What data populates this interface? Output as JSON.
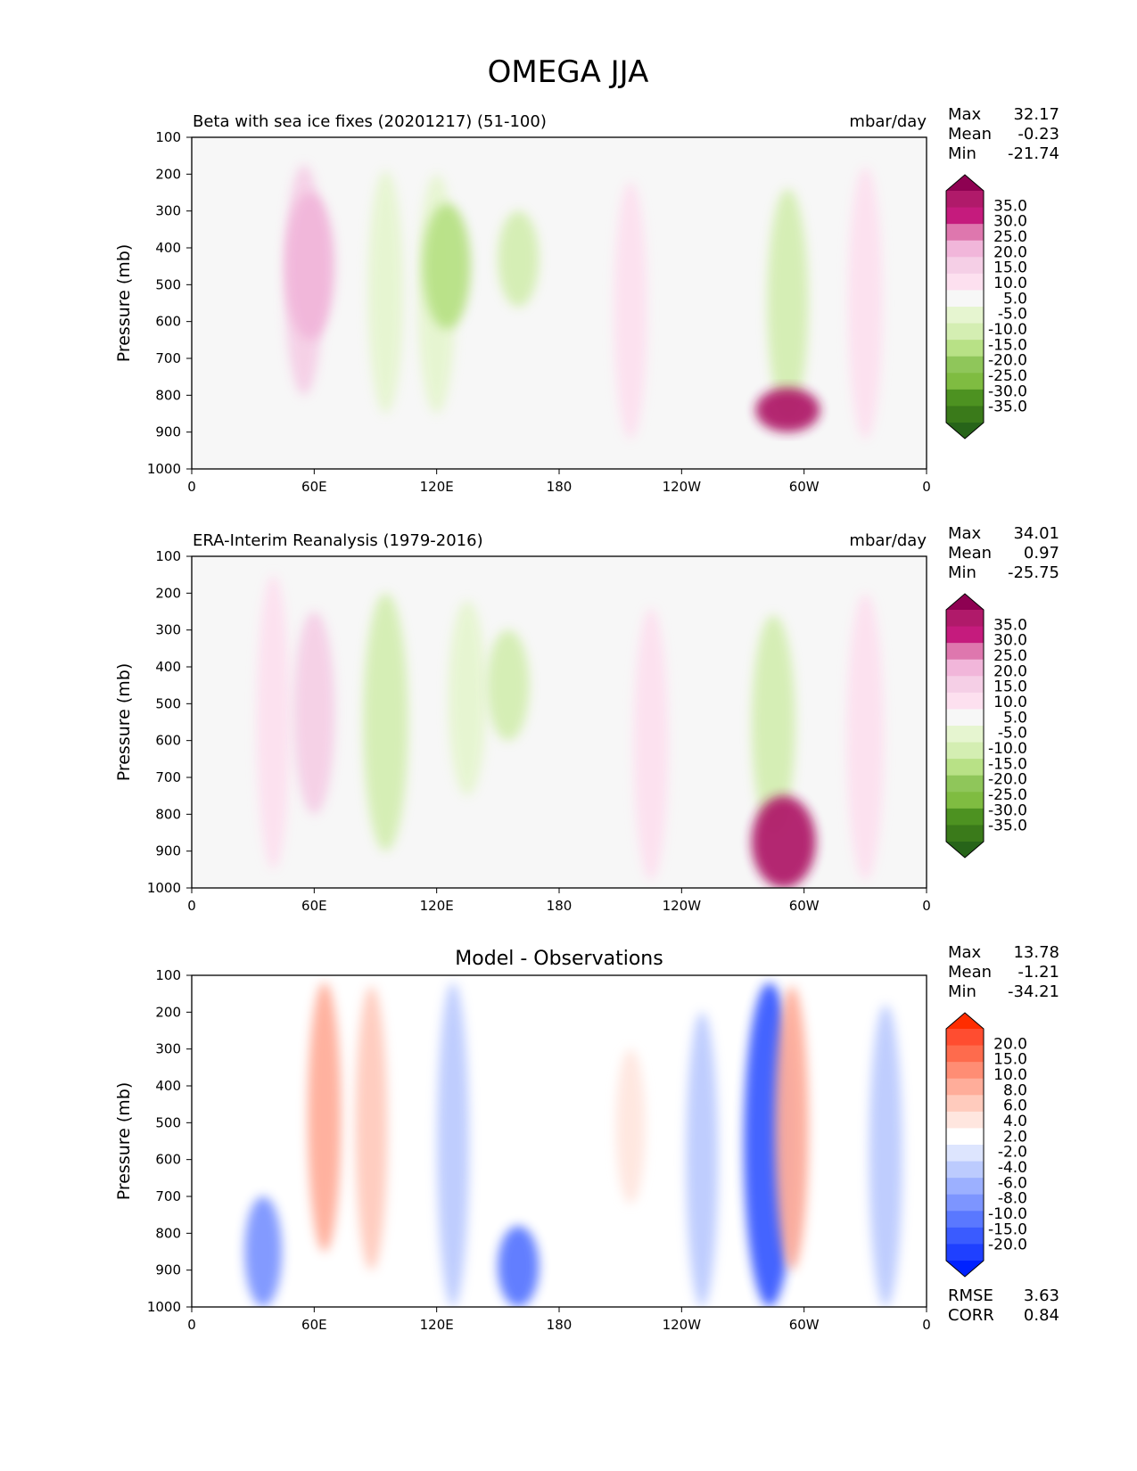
{
  "figure": {
    "title": "OMEGA JJA"
  },
  "chart_data": [
    {
      "type": "heatmap",
      "panel": "test",
      "title": "Beta with sea ice fixes (20201217) (51-100)",
      "units": "mbar/day",
      "ylabel": "Pressure (mb)",
      "xlabel": "",
      "x_ticks": [
        "0",
        "60E",
        "120E",
        "180",
        "120W",
        "60W",
        "0"
      ],
      "y_ticks": [
        "100",
        "200",
        "300",
        "400",
        "500",
        "600",
        "700",
        "800",
        "900",
        "1000"
      ],
      "xlim": [
        0,
        360
      ],
      "ylim": [
        100,
        1000
      ],
      "y_inverted": true,
      "stats": [
        {
          "label": "Max",
          "value": "32.17"
        },
        {
          "label": "Mean",
          "value": "-0.23"
        },
        {
          "label": "Min",
          "value": "-21.74"
        }
      ],
      "colorbar": {
        "labels": [
          "35.0",
          "30.0",
          "25.0",
          "20.0",
          "15.0",
          "10.0",
          "5.0",
          "-5.0",
          "-10.0",
          "-15.0",
          "-20.0",
          "-25.0",
          "-30.0",
          "-35.0"
        ],
        "colors": [
          "#8e0152",
          "#b01a6a",
          "#c51b7d",
          "#de77ae",
          "#f1b6da",
          "#f5cfe6",
          "#fde0ef",
          "#f7f7f7",
          "#e6f5d0",
          "#d4eeb2",
          "#b8e186",
          "#8fc65a",
          "#7fbc41",
          "#4d9221",
          "#3a7a1a",
          "#276419"
        ],
        "extend": "both"
      },
      "features": [
        {
          "lon": 55,
          "p_top": 175,
          "p_bot": 800,
          "value": 10
        },
        {
          "lon": 58,
          "p_top": 250,
          "p_bot": 650,
          "value": 18
        },
        {
          "lon": 120,
          "p_top": 200,
          "p_bot": 850,
          "value": -10
        },
        {
          "lon": 125,
          "p_top": 280,
          "p_bot": 620,
          "value": -17
        },
        {
          "lon": 95,
          "p_top": 190,
          "p_bot": 850,
          "value": -8
        },
        {
          "lon": 160,
          "p_top": 300,
          "p_bot": 560,
          "value": -12
        },
        {
          "lon": 215,
          "p_top": 220,
          "p_bot": 920,
          "value": 6
        },
        {
          "lon": 292,
          "p_top": 240,
          "p_bot": 860,
          "value": -12
        },
        {
          "lon": 292,
          "p_top": 780,
          "p_bot": 900,
          "value": 30
        },
        {
          "lon": 330,
          "p_top": 180,
          "p_bot": 920,
          "value": 7
        }
      ]
    },
    {
      "type": "heatmap",
      "panel": "reference",
      "title": "ERA-Interim Reanalysis (1979-2016)",
      "units": "mbar/day",
      "ylabel": "Pressure (mb)",
      "xlabel": "",
      "x_ticks": [
        "0",
        "60E",
        "120E",
        "180",
        "120W",
        "60W",
        "0"
      ],
      "y_ticks": [
        "100",
        "200",
        "300",
        "400",
        "500",
        "600",
        "700",
        "800",
        "900",
        "1000"
      ],
      "xlim": [
        0,
        360
      ],
      "ylim": [
        100,
        1000
      ],
      "y_inverted": true,
      "stats": [
        {
          "label": "Max",
          "value": "34.01"
        },
        {
          "label": "Mean",
          "value": "0.97"
        },
        {
          "label": "Min",
          "value": "-25.75"
        }
      ],
      "colorbar": {
        "labels": [
          "35.0",
          "30.0",
          "25.0",
          "20.0",
          "15.0",
          "10.0",
          "5.0",
          "-5.0",
          "-10.0",
          "-15.0",
          "-20.0",
          "-25.0",
          "-30.0",
          "-35.0"
        ],
        "colors": [
          "#8e0152",
          "#b01a6a",
          "#c51b7d",
          "#de77ae",
          "#f1b6da",
          "#f5cfe6",
          "#fde0ef",
          "#f7f7f7",
          "#e6f5d0",
          "#d4eeb2",
          "#b8e186",
          "#8fc65a",
          "#7fbc41",
          "#4d9221",
          "#3a7a1a",
          "#276419"
        ],
        "extend": "both"
      },
      "features": [
        {
          "lon": 40,
          "p_top": 150,
          "p_bot": 950,
          "value": 6
        },
        {
          "lon": 60,
          "p_top": 250,
          "p_bot": 800,
          "value": 12
        },
        {
          "lon": 95,
          "p_top": 200,
          "p_bot": 900,
          "value": -15
        },
        {
          "lon": 135,
          "p_top": 220,
          "p_bot": 750,
          "value": -10
        },
        {
          "lon": 155,
          "p_top": 300,
          "p_bot": 600,
          "value": -13
        },
        {
          "lon": 225,
          "p_top": 240,
          "p_bot": 980,
          "value": 7
        },
        {
          "lon": 285,
          "p_top": 260,
          "p_bot": 850,
          "value": -14
        },
        {
          "lon": 290,
          "p_top": 750,
          "p_bot": 1000,
          "value": 30
        },
        {
          "lon": 330,
          "p_top": 200,
          "p_bot": 980,
          "value": 9
        }
      ]
    },
    {
      "type": "heatmap",
      "panel": "difference",
      "title": "Model - Observations",
      "units": "",
      "ylabel": "Pressure (mb)",
      "xlabel": "",
      "x_ticks": [
        "0",
        "60E",
        "120E",
        "180",
        "120W",
        "60W",
        "0"
      ],
      "y_ticks": [
        "100",
        "200",
        "300",
        "400",
        "500",
        "600",
        "700",
        "800",
        "900",
        "1000"
      ],
      "xlim": [
        0,
        360
      ],
      "ylim": [
        100,
        1000
      ],
      "y_inverted": true,
      "stats": [
        {
          "label": "Max",
          "value": "13.78"
        },
        {
          "label": "Mean",
          "value": "-1.21"
        },
        {
          "label": "Min",
          "value": "-34.21"
        }
      ],
      "metrics": [
        {
          "label": "RMSE",
          "value": "3.63"
        },
        {
          "label": "CORR",
          "value": "0.84"
        }
      ],
      "colorbar": {
        "labels": [
          "20.0",
          "15.0",
          "10.0",
          "8.0",
          "6.0",
          "4.0",
          "2.0",
          "-2.0",
          "-4.0",
          "-6.0",
          "-8.0",
          "-10.0",
          "-15.0",
          "-20.0"
        ],
        "colors": [
          "#ff2d00",
          "#ff4d30",
          "#fe6b4d",
          "#ff8d74",
          "#ffad9a",
          "#ffcbbd",
          "#ffe6df",
          "#ffffff",
          "#dde5fe",
          "#bccbfe",
          "#9cb0ff",
          "#7d95ff",
          "#5a78ff",
          "#3a5bff",
          "#1f40ff",
          "#0022ff"
        ],
        "extend": "both"
      },
      "features": [
        {
          "lon": 65,
          "p_top": 120,
          "p_bot": 850,
          "value": 6
        },
        {
          "lon": 88,
          "p_top": 130,
          "p_bot": 900,
          "value": 5
        },
        {
          "lon": 128,
          "p_top": 120,
          "p_bot": 1000,
          "value": -5
        },
        {
          "lon": 35,
          "p_top": 700,
          "p_bot": 1000,
          "value": -9
        },
        {
          "lon": 160,
          "p_top": 780,
          "p_bot": 1000,
          "value": -12
        },
        {
          "lon": 215,
          "p_top": 300,
          "p_bot": 720,
          "value": 3
        },
        {
          "lon": 250,
          "p_top": 200,
          "p_bot": 1000,
          "value": -5
        },
        {
          "lon": 283,
          "p_top": 120,
          "p_bot": 1000,
          "value": -20
        },
        {
          "lon": 294,
          "p_top": 130,
          "p_bot": 900,
          "value": 6
        },
        {
          "lon": 340,
          "p_top": 180,
          "p_bot": 1000,
          "value": -6
        }
      ]
    }
  ]
}
